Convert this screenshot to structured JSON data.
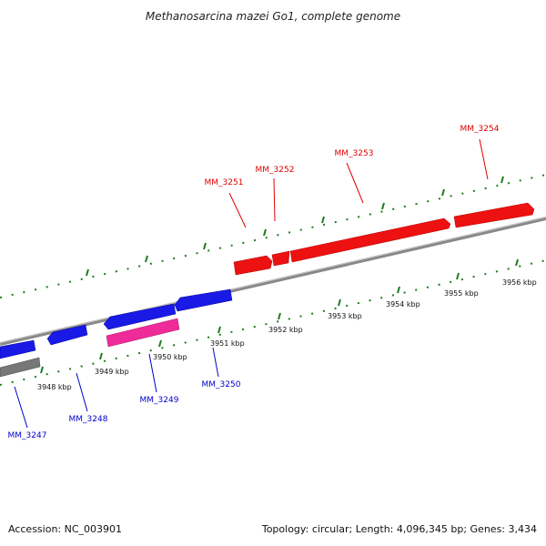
{
  "title": "Methanosarcina mazei Go1, complete genome",
  "footer": {
    "accession": "Accession: NC_003901",
    "summary": "Topology: circular; Length: 4,096,345 bp; Genes: 3,434"
  },
  "colors": {
    "forward_gene": "#ee1111",
    "reverse_gene": "#1a1ae6",
    "rna_gene": "#ee2b99",
    "other_gene": "#777777",
    "backbone": "#888888",
    "ticks": "#1f7a1f",
    "forward_label": "#e00000",
    "reverse_label": "#0000cc"
  },
  "ticks": [
    "3948 kbp",
    "3949 kbp",
    "3950 kbp",
    "3951 kbp",
    "3952 kbp",
    "3953 kbp",
    "3954 kbp",
    "3955 kbp",
    "3956 kbp"
  ],
  "genes_forward": [
    {
      "label": "MM_3251",
      "kind": "cds"
    },
    {
      "label": "MM_3252",
      "kind": "cds"
    },
    {
      "label": "MM_3253",
      "kind": "cds"
    },
    {
      "label": "MM_3254",
      "kind": "cds"
    }
  ],
  "genes_reverse": [
    {
      "label": "MM_3247",
      "kind": "cds"
    },
    {
      "label": "MM_3248",
      "kind": "cds"
    },
    {
      "label": "MM_3249",
      "kind": "rna"
    },
    {
      "label": "MM_3250",
      "kind": "cds"
    }
  ]
}
